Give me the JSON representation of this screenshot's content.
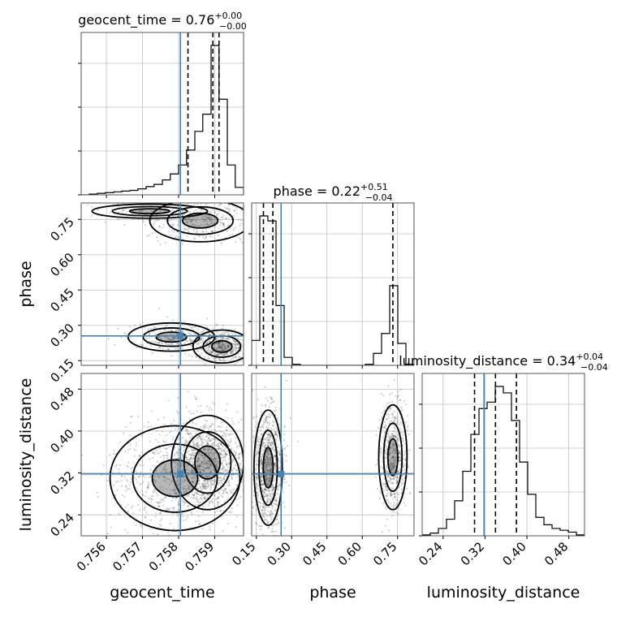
{
  "chart_data": {
    "type": "corner",
    "parameters": [
      "geocent_time",
      "phase",
      "luminosity_distance"
    ],
    "axis_labels": [
      "geocent_time",
      "phase",
      "luminosity_distance"
    ],
    "colors": {
      "truth": "#4682b4",
      "contour": "#000000",
      "hist": "#000000",
      "grid": "#c0c0c0"
    },
    "ranges": [
      [
        0.7553,
        0.7598
      ],
      [
        0.13,
        0.82
      ],
      [
        0.2,
        0.51
      ]
    ],
    "ticks": [
      {
        "values": [
          0.756,
          0.757,
          0.758,
          0.759
        ],
        "labels": [
          "0.756",
          "0.757",
          "0.758",
          "0.759"
        ]
      },
      {
        "values": [
          0.15,
          0.3,
          0.45,
          0.6,
          0.75
        ],
        "labels": [
          "0.15",
          "0.30",
          "0.45",
          "0.60",
          "0.75"
        ]
      },
      {
        "values": [
          0.24,
          0.32,
          0.4,
          0.48
        ],
        "labels": [
          "0.24",
          "0.32",
          "0.40",
          "0.48"
        ]
      }
    ],
    "truths": [
      0.75805,
      0.255,
      0.318
    ],
    "titles": [
      {
        "main": "geocent_time = 0.76",
        "sup": "+0.00",
        "sub": "−0.00"
      },
      {
        "main": "phase = 0.22",
        "sup": "+0.51",
        "sub": "−0.04"
      },
      {
        "main": "luminosity_distance = 0.34",
        "sup": "+0.04",
        "sub": "−0.04"
      }
    ],
    "quantiles": [
      [
        0.75826,
        0.75895,
        0.75912
      ],
      [
        0.18,
        0.22,
        0.73
      ],
      [
        0.3,
        0.34,
        0.38
      ]
    ],
    "histograms": [
      {
        "edges": [
          0.7553,
          0.75552,
          0.75575,
          0.75597,
          0.7562,
          0.75642,
          0.75665,
          0.75687,
          0.7571,
          0.75732,
          0.75755,
          0.75777,
          0.758,
          0.75822,
          0.75845,
          0.75867,
          0.7589,
          0.75912,
          0.75935,
          0.75957,
          0.7598
        ],
        "counts": [
          0,
          1,
          2,
          3,
          4,
          5,
          6,
          8,
          11,
          14,
          20,
          28,
          40,
          60,
          85,
          108,
          200,
          128,
          40,
          10
        ]
      },
      {
        "edges": [
          0.13,
          0.1645,
          0.199,
          0.2335,
          0.268,
          0.3025,
          0.337,
          0.3715,
          0.406,
          0.4405,
          0.475,
          0.5095,
          0.544,
          0.5785,
          0.613,
          0.6475,
          0.682,
          0.7165,
          0.751,
          0.7855,
          0.82
        ],
        "counts": [
          25,
          150,
          145,
          60,
          8,
          1,
          0,
          0,
          0,
          0,
          0,
          0,
          0,
          0,
          1,
          12,
          32,
          80,
          22,
          1
        ]
      },
      {
        "edges": [
          0.2,
          0.2155,
          0.231,
          0.2465,
          0.262,
          0.2775,
          0.293,
          0.3085,
          0.324,
          0.3395,
          0.355,
          0.3705,
          0.386,
          0.4015,
          0.417,
          0.4325,
          0.448,
          0.4635,
          0.479,
          0.4945,
          0.51
        ],
        "counts": [
          1,
          3,
          8,
          18,
          38,
          70,
          110,
          138,
          145,
          162,
          155,
          125,
          80,
          45,
          20,
          12,
          8,
          6,
          4,
          1
        ]
      }
    ],
    "pair_regions": {
      "geocent_time_phase": [
        {
          "x": 0.7592,
          "y": 0.21,
          "sx": 0.0004,
          "sy": 0.035,
          "n": 500
        },
        {
          "x": 0.7578,
          "y": 0.25,
          "sx": 0.0006,
          "sy": 0.03,
          "n": 260
        },
        {
          "x": 0.7586,
          "y": 0.745,
          "sx": 0.0007,
          "sy": 0.045,
          "n": 320
        },
        {
          "x": 0.7572,
          "y": 0.785,
          "sx": 0.0008,
          "sy": 0.015,
          "n": 120
        }
      ],
      "geocent_time_luminosity_distance": [
        {
          "x": 0.7588,
          "y": 0.34,
          "sx": 0.0005,
          "sy": 0.045,
          "n": 900
        },
        {
          "x": 0.7579,
          "y": 0.31,
          "sx": 0.0009,
          "sy": 0.05,
          "n": 700
        }
      ],
      "phase_luminosity_distance": [
        {
          "x": 0.2,
          "y": 0.33,
          "sx": 0.03,
          "sy": 0.055,
          "n": 900
        },
        {
          "x": 0.73,
          "y": 0.35,
          "sx": 0.03,
          "sy": 0.05,
          "n": 600
        }
      ]
    }
  }
}
